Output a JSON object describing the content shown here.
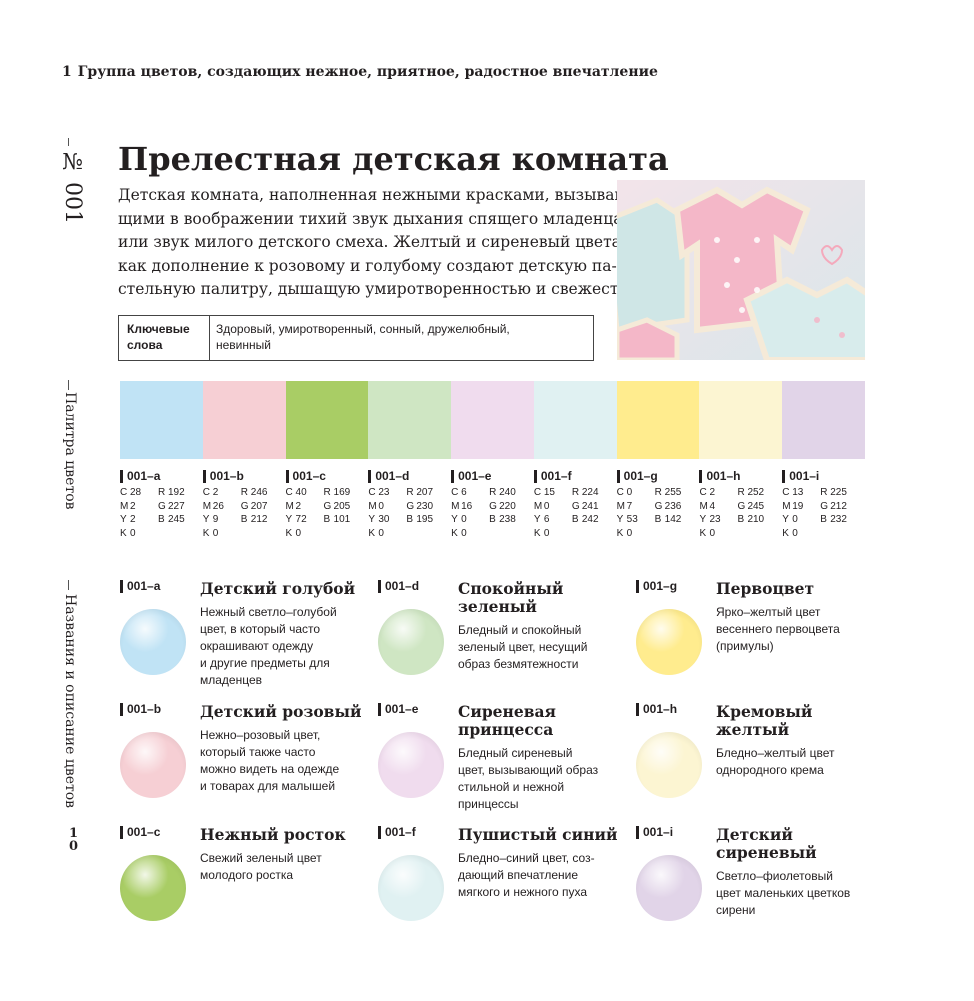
{
  "header": {
    "number": "1",
    "title": "Группа цветов, создающих нежное, приятное, радостное впечатление"
  },
  "side": {
    "entry_number": "№ 001",
    "palette_label": "Палитра цветов",
    "names_label": "Названия и описание цветов",
    "page_number": "10"
  },
  "article": {
    "title": "Прелестная детская комната",
    "paragraph": [
      "Детская комната, наполненная нежными красками, вызываю-",
      "щими в воображении тихий звук дыхания спящего младенца",
      "или звук милого детского смеха. Желтый и сиреневый цвета",
      "как дополнение к розовому и голубому создают детскую па-",
      "стельную палитру, дышащую умиротворенностью и свежестью."
    ],
    "keywords": {
      "label": [
        "Ключевые",
        "слова"
      ],
      "text": [
        "Здоровый, умиротворенный, сонный, дружелюбный,",
        "невинный"
      ]
    }
  },
  "palette": [
    {
      "code": "001–a",
      "cmyk": [
        {
          "label": "C",
          "value": 28
        },
        {
          "label": "M",
          "value": 2
        },
        {
          "label": "Y",
          "value": 2
        },
        {
          "label": "K",
          "value": 0
        }
      ],
      "rgb": [
        {
          "label": "R",
          "value": 192
        },
        {
          "label": "G",
          "value": 227
        },
        {
          "label": "B",
          "value": 245
        }
      ]
    },
    {
      "code": "001–b",
      "cmyk": [
        {
          "label": "C",
          "value": 2
        },
        {
          "label": "M",
          "value": 26
        },
        {
          "label": "Y",
          "value": 9
        },
        {
          "label": "K",
          "value": 0
        }
      ],
      "rgb": [
        {
          "label": "R",
          "value": 246
        },
        {
          "label": "G",
          "value": 207
        },
        {
          "label": "B",
          "value": 212
        }
      ]
    },
    {
      "code": "001–c",
      "cmyk": [
        {
          "label": "C",
          "value": 40
        },
        {
          "label": "M",
          "value": 2
        },
        {
          "label": "Y",
          "value": 72
        },
        {
          "label": "K",
          "value": 0
        }
      ],
      "rgb": [
        {
          "label": "R",
          "value": 169
        },
        {
          "label": "G",
          "value": 205
        },
        {
          "label": "B",
          "value": 101
        }
      ]
    },
    {
      "code": "001–d",
      "cmyk": [
        {
          "label": "C",
          "value": 23
        },
        {
          "label": "M",
          "value": 0
        },
        {
          "label": "Y",
          "value": 30
        },
        {
          "label": "K",
          "value": 0
        }
      ],
      "rgb": [
        {
          "label": "R",
          "value": 207
        },
        {
          "label": "G",
          "value": 230
        },
        {
          "label": "B",
          "value": 195
        }
      ]
    },
    {
      "code": "001–e",
      "cmyk": [
        {
          "label": "C",
          "value": 6
        },
        {
          "label": "M",
          "value": 16
        },
        {
          "label": "Y",
          "value": 0
        },
        {
          "label": "K",
          "value": 0
        }
      ],
      "rgb": [
        {
          "label": "R",
          "value": 240
        },
        {
          "label": "G",
          "value": 220
        },
        {
          "label": "B",
          "value": 238
        }
      ]
    },
    {
      "code": "001–f",
      "cmyk": [
        {
          "label": "C",
          "value": 15
        },
        {
          "label": "M",
          "value": 0
        },
        {
          "label": "Y",
          "value": 6
        },
        {
          "label": "K",
          "value": 0
        }
      ],
      "rgb": [
        {
          "label": "R",
          "value": 224
        },
        {
          "label": "G",
          "value": 241
        },
        {
          "label": "B",
          "value": 242
        }
      ]
    },
    {
      "code": "001–g",
      "cmyk": [
        {
          "label": "C",
          "value": 0
        },
        {
          "label": "M",
          "value": 7
        },
        {
          "label": "Y",
          "value": 53
        },
        {
          "label": "K",
          "value": 0
        }
      ],
      "rgb": [
        {
          "label": "R",
          "value": 255
        },
        {
          "label": "G",
          "value": 236
        },
        {
          "label": "B",
          "value": 142
        }
      ]
    },
    {
      "code": "001–h",
      "cmyk": [
        {
          "label": "C",
          "value": 2
        },
        {
          "label": "M",
          "value": 4
        },
        {
          "label": "Y",
          "value": 23
        },
        {
          "label": "K",
          "value": 0
        }
      ],
      "rgb": [
        {
          "label": "R",
          "value": 252
        },
        {
          "label": "G",
          "value": 245
        },
        {
          "label": "B",
          "value": 210
        }
      ]
    },
    {
      "code": "001–i",
      "cmyk": [
        {
          "label": "C",
          "value": 13
        },
        {
          "label": "M",
          "value": 19
        },
        {
          "label": "Y",
          "value": 0
        },
        {
          "label": "K",
          "value": 0
        }
      ],
      "rgb": [
        {
          "label": "R",
          "value": 225
        },
        {
          "label": "G",
          "value": 212
        },
        {
          "label": "B",
          "value": 232
        }
      ]
    }
  ],
  "descriptions": [
    {
      "name": [
        "Детский голубой"
      ],
      "text": [
        "Нежный светло–голубой",
        "цвет, в который часто",
        "окрашивают одежду",
        "и другие предметы для",
        "младенцев"
      ]
    },
    {
      "name": [
        "Детский розовый"
      ],
      "text": [
        "Нежно–розовый цвет,",
        "который также часто",
        "можно видеть на одежде",
        "и товарах для малышей"
      ]
    },
    {
      "name": [
        "Нежный росток"
      ],
      "text": [
        "Свежий зеленый цвет",
        "молодого ростка"
      ]
    },
    {
      "name": [
        "Спокойный",
        "зеленый"
      ],
      "text": [
        "Бледный и спокойный",
        "зеленый цвет, несущий",
        "образ безмятежности"
      ]
    },
    {
      "name": [
        "Сиреневая",
        "принцесса"
      ],
      "text": [
        "Бледный сиреневый",
        "цвет, вызывающий образ",
        "стильной и нежной",
        "принцессы"
      ]
    },
    {
      "name": [
        "Пушистый синий"
      ],
      "text": [
        "Бледно–синий цвет, соз-",
        "дающий впечатление",
        "мягкого и нежного пуха"
      ]
    },
    {
      "name": [
        "Первоцвет"
      ],
      "text": [
        "Ярко–желтый цвет",
        "весеннего первоцвета",
        "(примулы)"
      ]
    },
    {
      "name": [
        "Кремовый",
        "желтый"
      ],
      "text": [
        "Бледно–желтый цвет",
        "однородного крема"
      ]
    },
    {
      "name": [
        "Детский",
        "сиреневый"
      ],
      "text": [
        "Светло–фиолетовый",
        "цвет маленьких цветков",
        "сирени"
      ]
    }
  ]
}
